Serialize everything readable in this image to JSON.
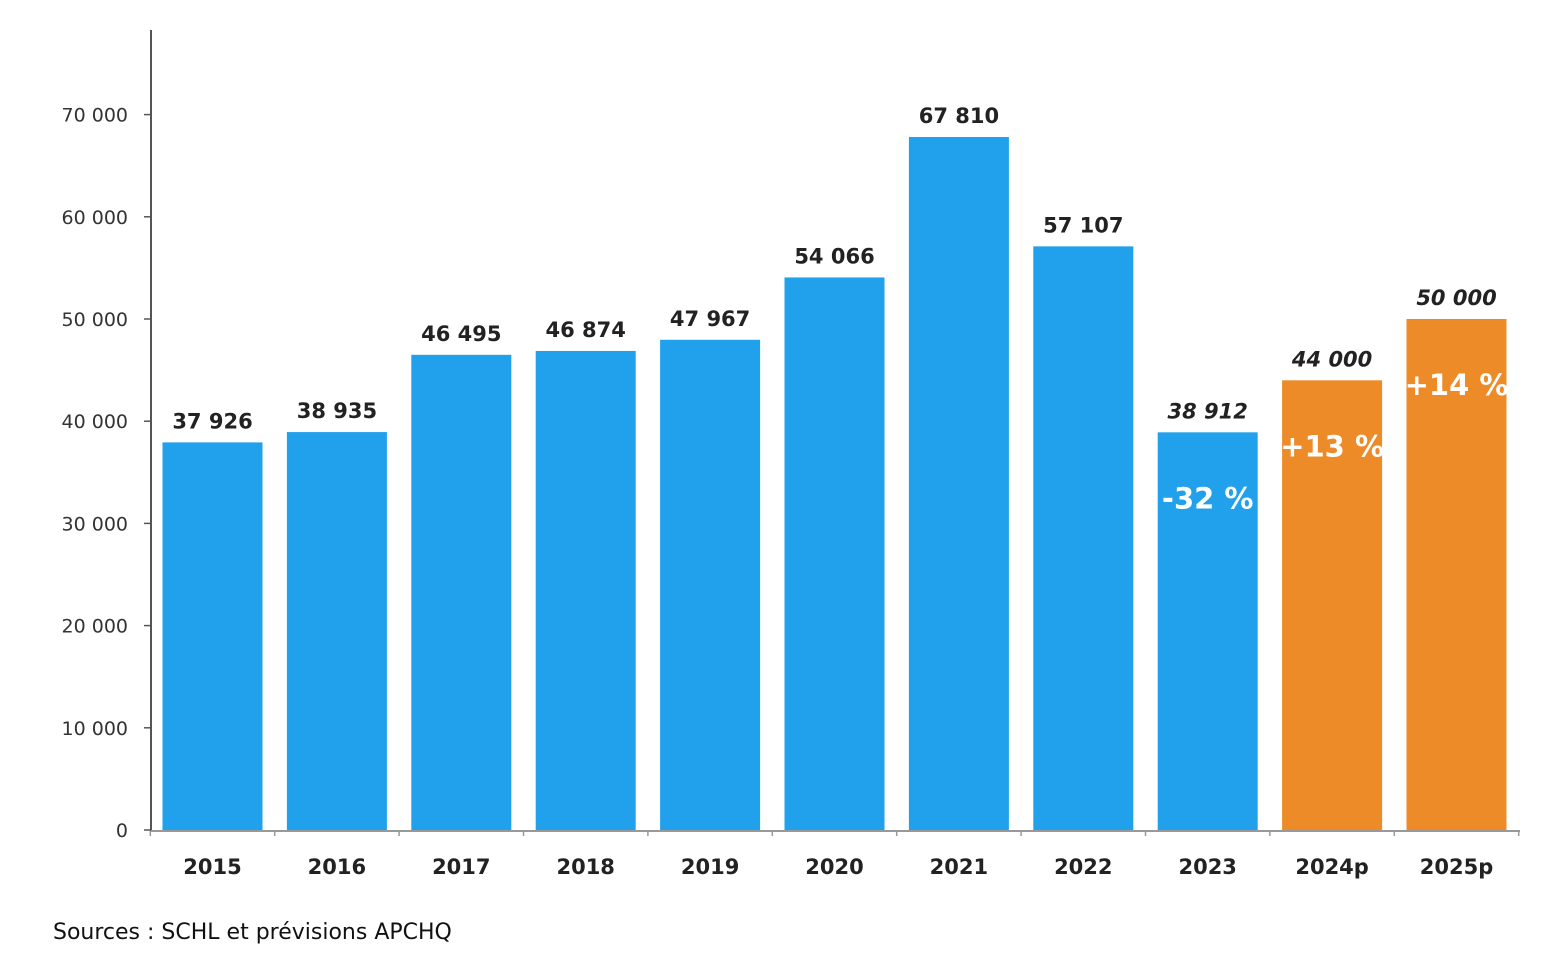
{
  "chart_data": {
    "type": "bar",
    "title": "",
    "xlabel": "",
    "ylabel": "",
    "ylim": [
      0,
      80000
    ],
    "yticks": [
      0,
      10000,
      20000,
      30000,
      40000,
      50000,
      60000,
      70000
    ],
    "ytick_labels": [
      "0",
      "10 000",
      "20 000",
      "30 000",
      "40 000",
      "50 000",
      "60 000",
      "70 000"
    ],
    "grid": false,
    "legend": "none",
    "categories": [
      "2015",
      "2016",
      "2017",
      "2018",
      "2019",
      "2020",
      "2021",
      "2022",
      "2023",
      "2024p",
      "2025p"
    ],
    "values": [
      37926,
      38935,
      46495,
      46874,
      47967,
      54066,
      67810,
      57107,
      38912,
      44000,
      50000
    ],
    "value_labels": [
      "37 926",
      "38 935",
      "46 495",
      "46 874",
      "47 967",
      "54 066",
      "67 810",
      "57 107",
      "38 912",
      "44 000",
      "50 000"
    ],
    "forecast": [
      false,
      false,
      false,
      false,
      false,
      false,
      false,
      false,
      false,
      true,
      true
    ],
    "italic_labels": [
      false,
      false,
      false,
      false,
      false,
      false,
      false,
      false,
      true,
      true,
      true
    ],
    "annotations": [
      {
        "category": "2023",
        "text": "-32 %"
      },
      {
        "category": "2024p",
        "text": "+13 %"
      },
      {
        "category": "2025p",
        "text": "+14 %"
      }
    ],
    "colors": {
      "actual": "#21a1ec",
      "forecast": "#ed8b29",
      "axis": "#555555",
      "tick_text": "#333333",
      "label_text": "#222222",
      "annotation_text": "#ffffff"
    }
  },
  "footer": {
    "source": "Sources : SCHL et prévisions APCHQ"
  }
}
